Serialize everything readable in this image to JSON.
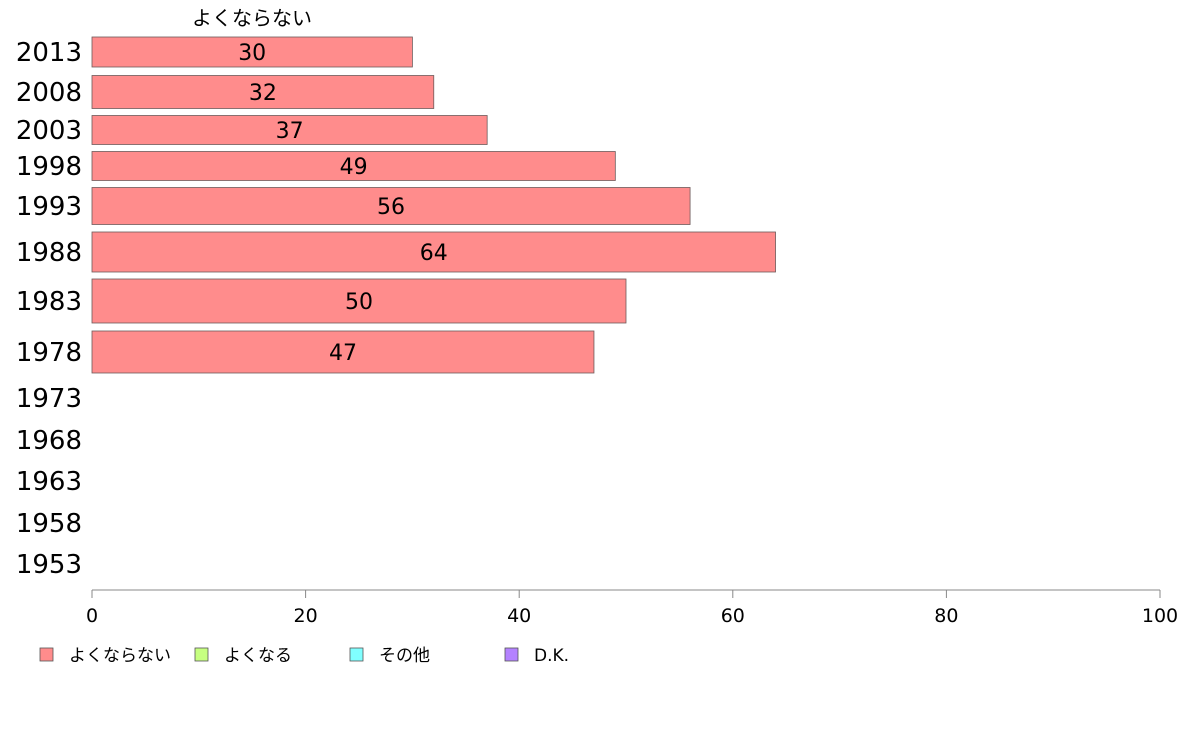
{
  "chart_data": {
    "type": "bar",
    "orientation": "horizontal",
    "categories": [
      "2013",
      "2008",
      "2003",
      "1998",
      "1993",
      "1988",
      "1983",
      "1978",
      "1973",
      "1968",
      "1963",
      "1958",
      "1953"
    ],
    "series": [
      {
        "name": "よくならない",
        "color": "#ff8c8c",
        "values": [
          30,
          32,
          37,
          49,
          56,
          64,
          50,
          47,
          null,
          null,
          null,
          null,
          null
        ]
      }
    ],
    "series_title": "よくならない",
    "xlim": [
      0,
      100
    ],
    "xticks": [
      0,
      20,
      40,
      60,
      80,
      100
    ],
    "grid": false,
    "legend_position": "bottom-left",
    "legend": [
      {
        "label": "よくならない",
        "color": "#ff8c8c"
      },
      {
        "label": "よくなる",
        "color": "#c6ff80"
      },
      {
        "label": "その他",
        "color": "#80ffff"
      },
      {
        "label": "D.K.",
        "color": "#b482ff"
      }
    ]
  }
}
